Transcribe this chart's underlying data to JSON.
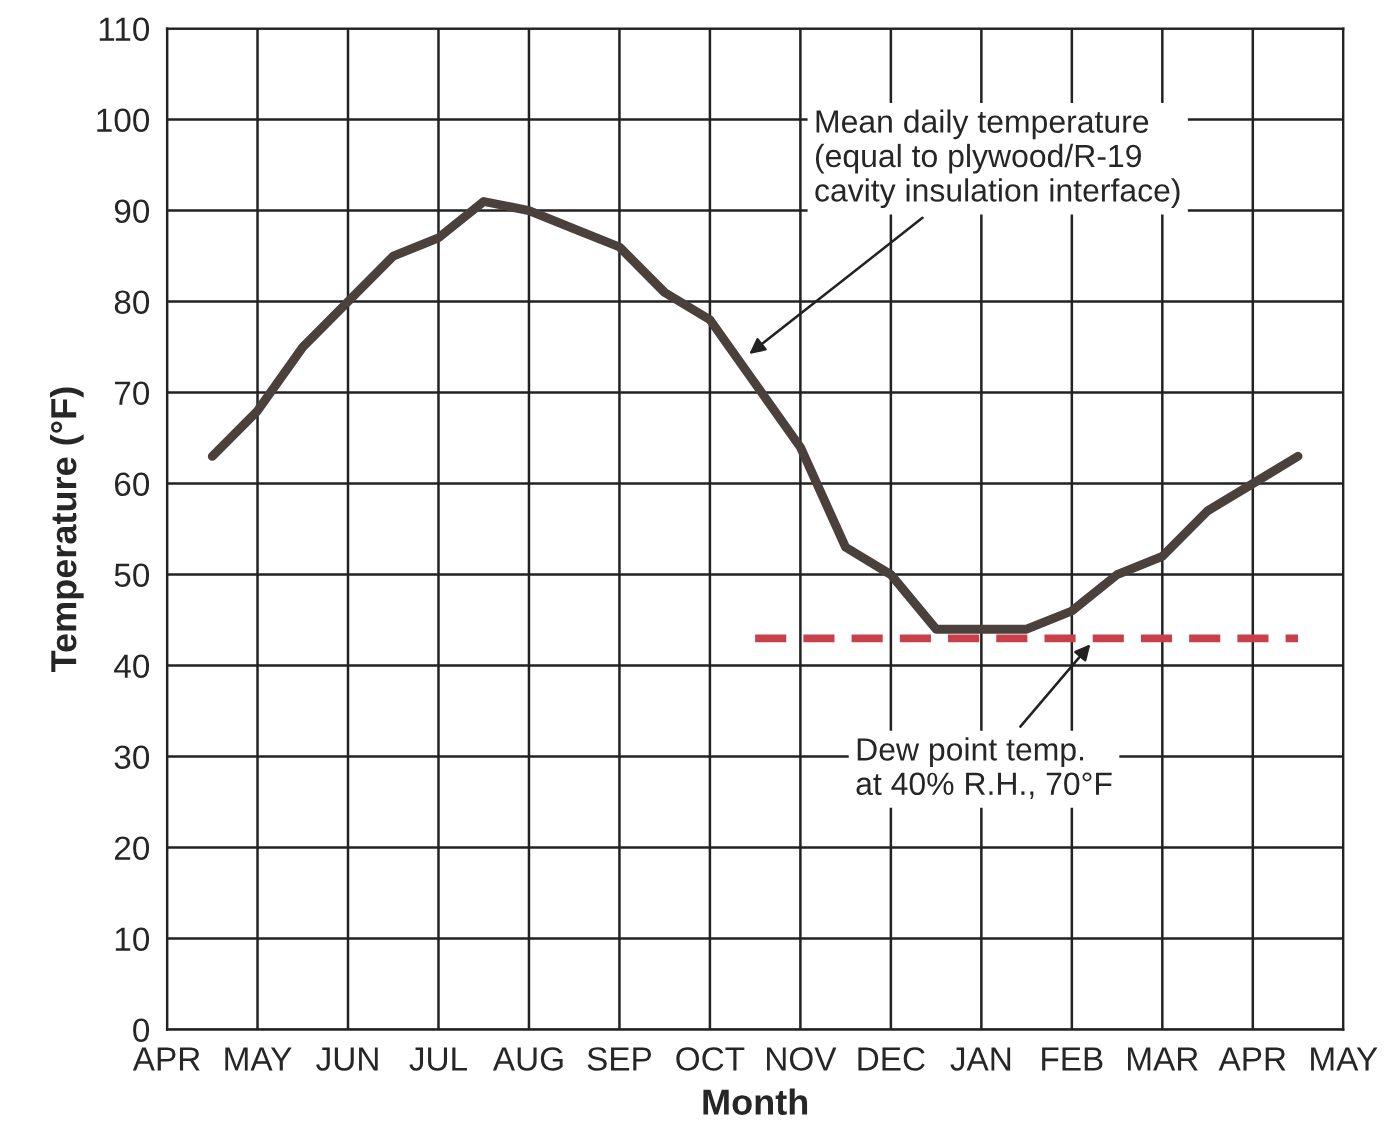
{
  "chart_data": {
    "type": "line",
    "xlabel": "Month",
    "ylabel": "Temperature (°F)",
    "categories": [
      "APR",
      null,
      "MAY",
      null,
      "JUN",
      null,
      "JUL",
      null,
      "AUG",
      null,
      "SEP",
      null,
      "OCT",
      null,
      "NOV",
      null,
      "DEC",
      null,
      "JAN",
      null,
      "FEB",
      null,
      "MAR",
      null,
      "APR",
      null,
      "MAY"
    ],
    "ylim": [
      0,
      110
    ],
    "yticks": [
      0,
      10,
      20,
      30,
      40,
      50,
      60,
      70,
      80,
      90,
      100,
      110
    ],
    "grid": true,
    "marker": "none",
    "series": [
      {
        "color": "#4a403c",
        "line_style": "solid",
        "values": [
          null,
          63,
          68,
          75,
          80,
          85,
          87,
          91,
          90,
          88,
          86,
          81,
          78,
          71,
          64,
          53,
          50,
          44,
          44,
          44,
          46,
          50,
          52,
          57,
          60,
          63,
          null
        ]
      },
      {
        "color": "#c8404a",
        "line_style": "dashed",
        "values": [
          null,
          null,
          null,
          null,
          null,
          null,
          null,
          null,
          null,
          null,
          null,
          null,
          null,
          43,
          43,
          43,
          43,
          43,
          43,
          43,
          43,
          43,
          43,
          43,
          43,
          43,
          null
        ]
      }
    ],
    "annotations": [
      "Mean daily temperature\n(equal to plywood/R-19\ncavity insulation interface)",
      "Dew point temp.\nat 40% R.H., 70°F"
    ]
  }
}
